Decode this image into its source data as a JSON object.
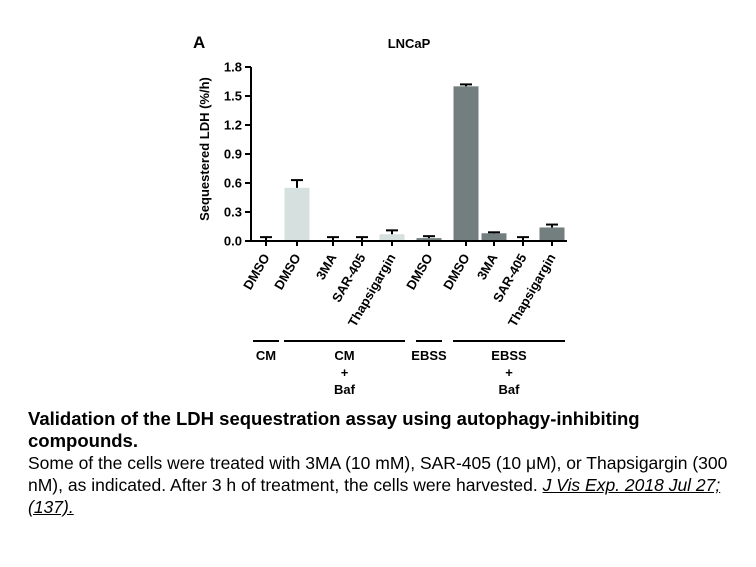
{
  "panel_label": "A",
  "colors": {
    "cm_bar": "#d5e0df",
    "ebss_bar": "#737f7f",
    "errorbar": "#000000"
  },
  "chart_data": {
    "type": "bar",
    "title": "LNCaP",
    "ylabel": "Sequestered LDH (%/h)",
    "xlabel": "",
    "ylim": [
      0,
      1.8
    ],
    "yticks": [
      "0.0",
      "0.3",
      "0.6",
      "0.9",
      "1.2",
      "1.5",
      "1.8"
    ],
    "grid": false,
    "categories": [
      "DMSO",
      "DMSO",
      "3MA",
      "SAR-405",
      "Thapsigargin",
      "DMSO",
      "DMSO",
      "3MA",
      "SAR-405",
      "Thapsigargin"
    ],
    "values": [
      0.0,
      0.55,
      0.0,
      0.0,
      0.07,
      0.03,
      1.6,
      0.08,
      0.0,
      0.14
    ],
    "errors": [
      0.04,
      0.08,
      0.04,
      0.04,
      0.04,
      0.02,
      0.02,
      0.01,
      0.04,
      0.03
    ],
    "bar_color_groups": [
      "cm",
      "cm",
      "cm",
      "cm",
      "cm",
      "ebss",
      "ebss",
      "ebss",
      "ebss",
      "ebss"
    ],
    "groups": [
      {
        "line1": "CM",
        "line2": "",
        "line3": "",
        "first": 0,
        "last": 0
      },
      {
        "line1": "CM",
        "line2": "+",
        "line3": "Baf",
        "first": 1,
        "last": 4
      },
      {
        "line1": "EBSS",
        "line2": "",
        "line3": "",
        "first": 5,
        "last": 5
      },
      {
        "line1": "EBSS",
        "line2": "+",
        "line3": "Baf",
        "first": 6,
        "last": 9
      }
    ]
  },
  "caption": {
    "title": "Validation of the LDH sequestration assay using autophagy-inhibiting compounds.",
    "body": "Some of the cells were treated with 3MA (10 mM), SAR-405 (10 μM), or Thapsigargin (300 nM), as indicated. After 3 h of treatment, the cells were harvested. ",
    "citation": "J Vis Exp. 2018 Jul 27;(137)."
  }
}
